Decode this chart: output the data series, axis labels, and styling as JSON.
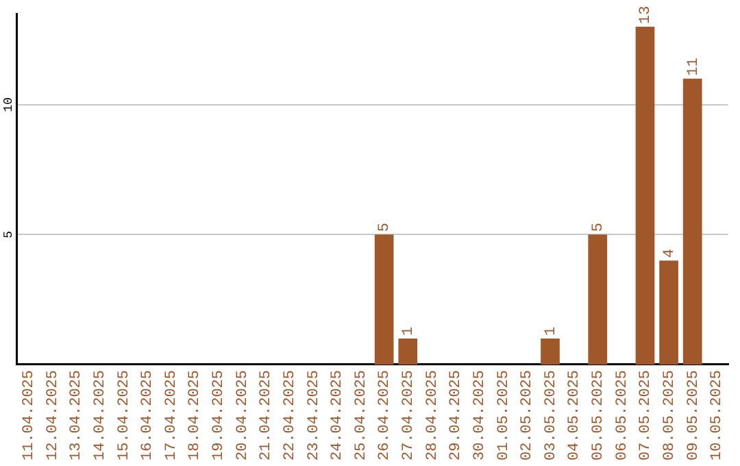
{
  "chart_data": {
    "type": "bar",
    "categories": [
      "11.04.2025",
      "12.04.2025",
      "13.04.2025",
      "14.04.2025",
      "15.04.2025",
      "16.04.2025",
      "17.04.2025",
      "18.04.2025",
      "19.04.2025",
      "20.04.2025",
      "21.04.2025",
      "22.04.2025",
      "23.04.2025",
      "24.04.2025",
      "25.04.2025",
      "26.04.2025",
      "27.04.2025",
      "28.04.2025",
      "29.04.2025",
      "30.04.2025",
      "01.05.2025",
      "02.05.2025",
      "03.05.2025",
      "04.05.2025",
      "05.05.2025",
      "06.05.2025",
      "07.05.2025",
      "08.05.2025",
      "09.05.2025",
      "10.05.2025"
    ],
    "values": [
      null,
      null,
      null,
      null,
      null,
      null,
      null,
      null,
      null,
      null,
      null,
      null,
      null,
      null,
      null,
      5,
      1,
      null,
      null,
      null,
      null,
      null,
      1,
      null,
      5,
      null,
      13,
      4,
      11,
      null
    ],
    "color": "#a0572a",
    "ylim": [
      0,
      13.5
    ],
    "yticks": [
      5,
      10
    ],
    "grid": "y",
    "legend": false,
    "data_labels": true
  }
}
